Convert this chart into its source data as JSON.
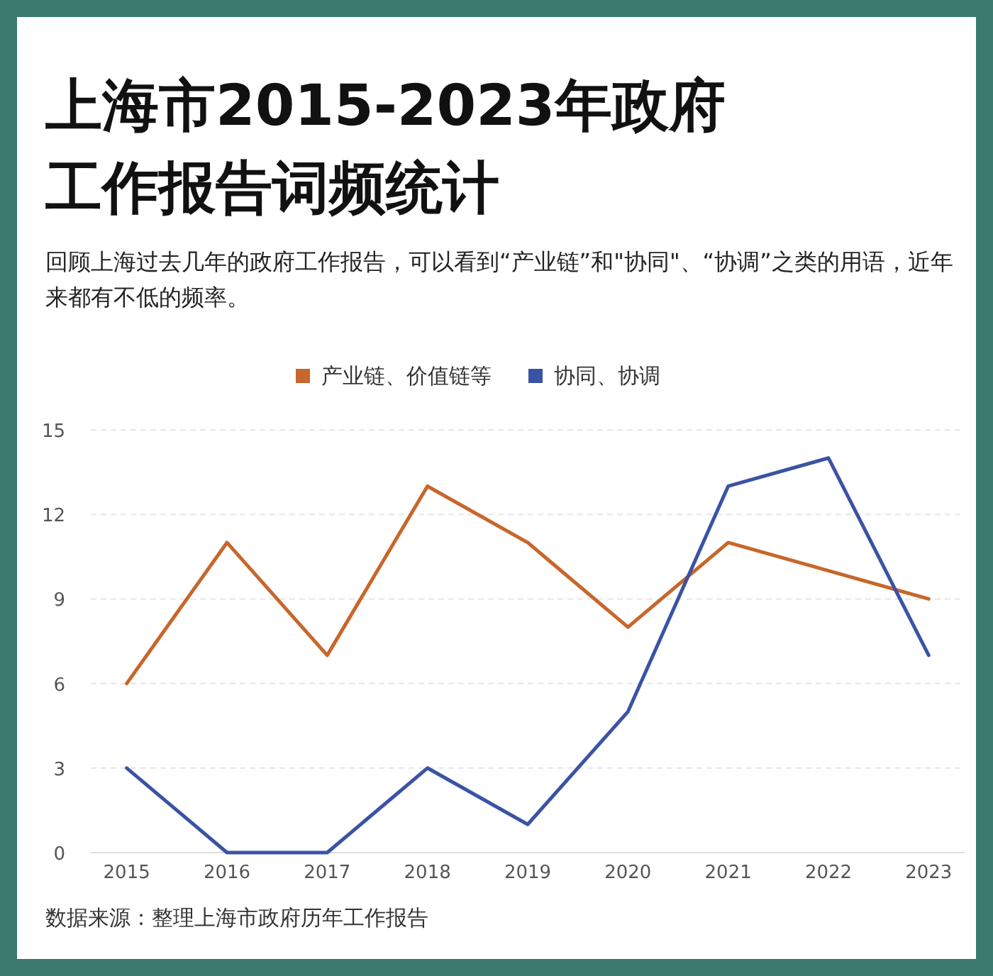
{
  "chart_data": {
    "type": "line",
    "title": "上海市2015-2023年政府工作报告词频统计",
    "subtitle": "回顾上海过去几年的政府工作报告，可以看到“产业链”和\"协同\"、“协调”之类的用语，近年来都有不低的频率。",
    "categories": [
      "2015",
      "2016",
      "2017",
      "2018",
      "2019",
      "2020",
      "2021",
      "2022",
      "2023"
    ],
    "series": [
      {
        "name": "产业链、价值链等",
        "color": "#c8662b",
        "values": [
          6,
          11,
          7,
          13,
          11,
          8,
          11,
          10,
          9
        ]
      },
      {
        "name": "协同、协调",
        "color": "#3a53a4",
        "values": [
          3,
          0,
          0,
          3,
          1,
          5,
          13,
          14,
          7
        ]
      }
    ],
    "ylim": [
      0,
      15
    ],
    "yticks": [
      0,
      3,
      6,
      9,
      12,
      15
    ],
    "grid": "y",
    "legend": "top",
    "marker": "none",
    "line_style": "solid",
    "annotations": [
      "数据来源：整理上海市政府历年工作报告"
    ]
  }
}
